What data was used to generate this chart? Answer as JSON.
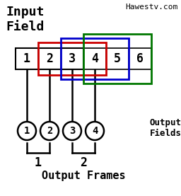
{
  "title": "Hawestv.com",
  "bg_color": "#ffffff",
  "input_label": "Input\nField",
  "output_fields_label": "Output\nFields",
  "output_frames_label": "Output Frames",
  "field_nums": [
    "1",
    "2",
    "3",
    "4",
    "5",
    "6"
  ],
  "box_color": "#000000",
  "red_color": "#cc0000",
  "blue_color": "#0000cc",
  "green_color": "#007700",
  "circle_nums": [
    "1",
    "2",
    "3",
    "4"
  ],
  "frame_labels": [
    "1",
    "2"
  ]
}
